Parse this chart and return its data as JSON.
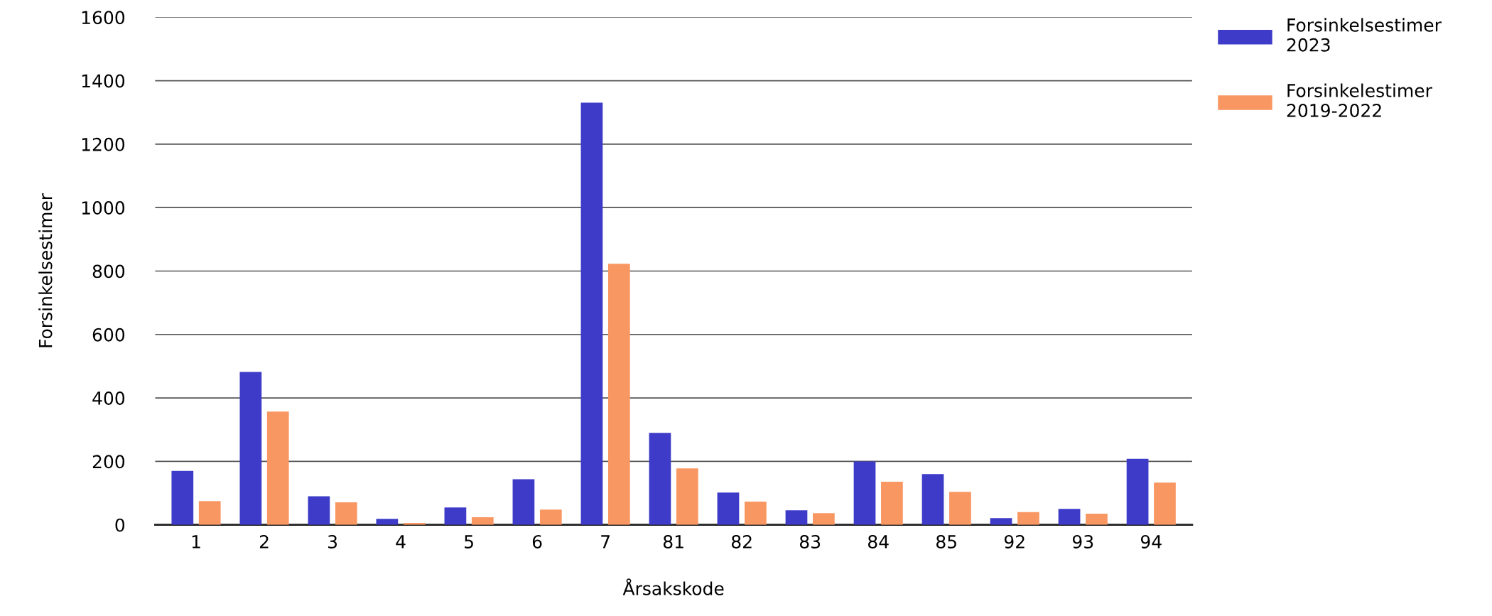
{
  "chart_data": {
    "type": "bar",
    "xlabel": "Årsakskode",
    "ylabel": "Forsinkelsestimer",
    "categories": [
      "1",
      "2",
      "3",
      "4",
      "5",
      "6",
      "7",
      "81",
      "82",
      "83",
      "84",
      "85",
      "92",
      "93",
      "94"
    ],
    "series": [
      {
        "name": "Forsinkelsestimer 2023",
        "color": "#3d3bc8",
        "values": [
          170,
          482,
          90,
          19,
          55,
          144,
          1331,
          290,
          102,
          46,
          200,
          160,
          21,
          50,
          208
        ]
      },
      {
        "name": "Forsinkelestimer 2019-2022",
        "color": "#f99763",
        "values": [
          75,
          357,
          71,
          6,
          24,
          48,
          823,
          178,
          73,
          37,
          136,
          104,
          40,
          35,
          133
        ]
      }
    ],
    "ylim": [
      0,
      1600
    ],
    "yticks": [
      0,
      200,
      400,
      600,
      800,
      1000,
      1200,
      1400,
      1600
    ],
    "grid": "y",
    "legend": "top right"
  }
}
